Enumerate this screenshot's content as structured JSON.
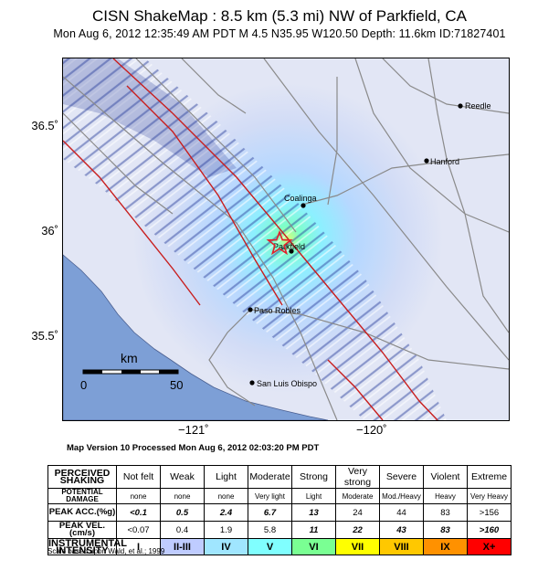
{
  "header": {
    "title": "CISN ShakeMap : 8.5 km (5.3 mi) NW of Parkfield, CA",
    "subtitle": "Mon Aug  6, 2012 12:35:49 AM PDT   M 4.5   N35.95 W120.50   Depth: 11.6km   ID:71827401"
  },
  "map": {
    "y_ticks": [
      "36.5˚",
      "36˚",
      "35.5˚"
    ],
    "x_ticks": [
      "−121˚",
      "−120˚"
    ],
    "cities": [
      {
        "id": "reedley",
        "label": "Reedle"
      },
      {
        "id": "hanford",
        "label": "Hanford"
      },
      {
        "id": "coalinga",
        "label": "Coalinga"
      },
      {
        "id": "parkfield",
        "label": "Parkfield"
      },
      {
        "id": "paso-robles",
        "label": "Paso Robles"
      },
      {
        "id": "san-luis-obispo",
        "label": "San Luis Obispo"
      }
    ],
    "scale_bar": {
      "unit": "km",
      "min": "0",
      "max": "50"
    },
    "epicenter_symbol": "star-icon",
    "colors": {
      "ocean": "#7d9fd6",
      "land": "#dfe3f3",
      "faults": "#c81e1e",
      "roads": "#8a8a8a"
    },
    "version_line": "Map Version 10 Processed Mon Aug  6, 2012 02:03:20 PM PDT"
  },
  "legend": {
    "perceived_shaking_label": "PERCEIVED SHAKING",
    "potential_damage_label": "POTENTIAL DAMAGE",
    "peak_acc_label": "PEAK ACC.(%g)",
    "peak_vel_label": "PEAK VEL.(cm/s)",
    "intensity_label": "INSTRUMENTAL INTENSITY",
    "shaking": [
      "Not felt",
      "Weak",
      "Light",
      "Moderate",
      "Strong",
      "Very strong",
      "Severe",
      "Violent",
      "Extreme"
    ],
    "damage": [
      "none",
      "none",
      "none",
      "Very light",
      "Light",
      "Moderate",
      "Mod./Heavy",
      "Heavy",
      "Very Heavy"
    ],
    "acc": [
      "<0.1",
      "0.5",
      "2.4",
      "6.7",
      "13",
      "24",
      "44",
      "83",
      ">156"
    ],
    "vel": [
      "<0.07",
      "0.4",
      "1.9",
      "5.8",
      "11",
      "22",
      "43",
      "83",
      ">160"
    ],
    "intensity": [
      "I",
      "II-III",
      "IV",
      "V",
      "VI",
      "VII",
      "VIII",
      "IX",
      "X+"
    ],
    "intensity_colors": [
      "#ffffff",
      "#bfccff",
      "#a0e6ff",
      "#80ffff",
      "#7aff93",
      "#ffff00",
      "#ffc800",
      "#ff9100",
      "#ff0000"
    ],
    "footnote": "Scale based upon Wald, et al.; 1999"
  }
}
